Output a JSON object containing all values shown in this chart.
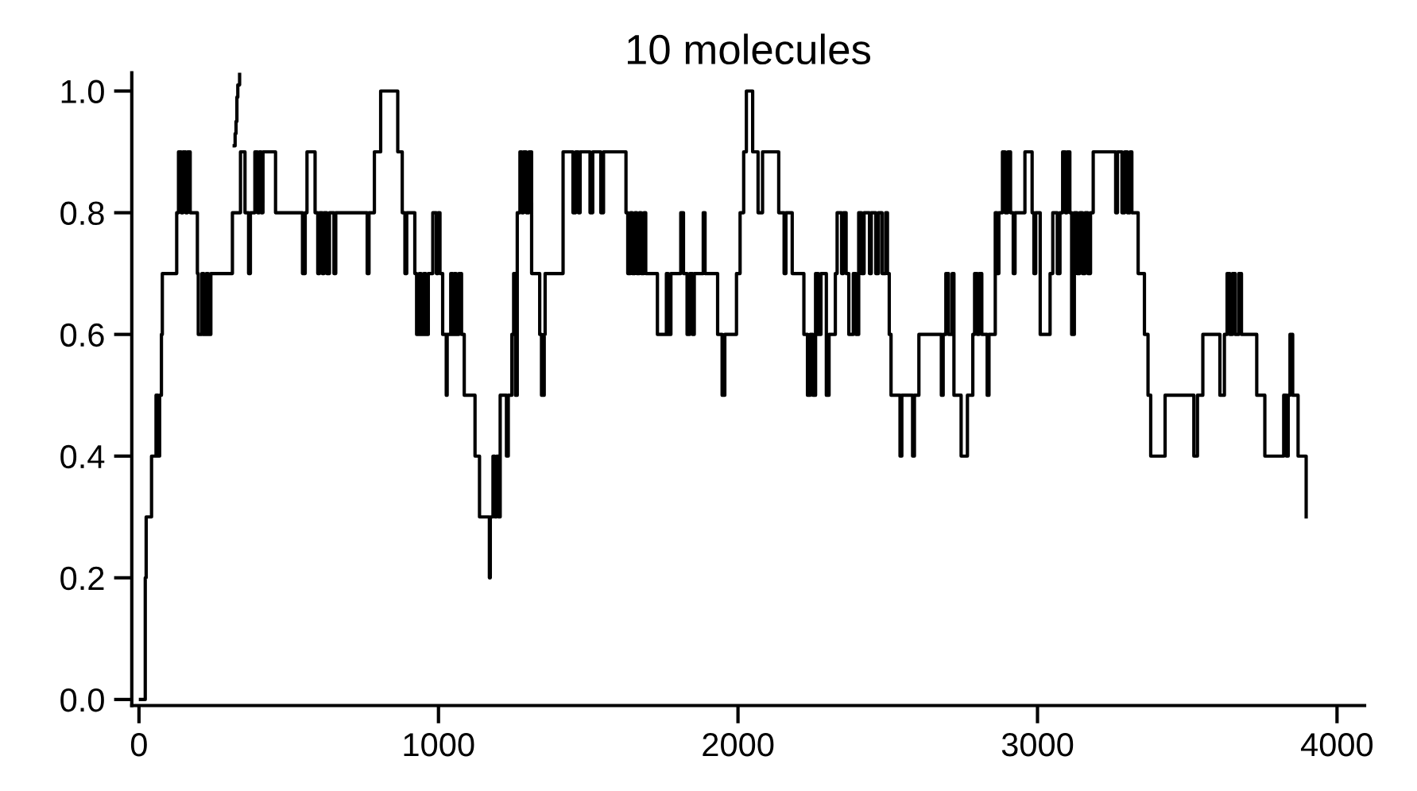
{
  "chart_data": {
    "type": "step",
    "title": "10 molecules",
    "series": [
      {
        "color": "#000000",
        "x": [
          5,
          15,
          21,
          24,
          42,
          57,
          63,
          69,
          75,
          78,
          126,
          132,
          141,
          147,
          156,
          162,
          171,
          195,
          198,
          210,
          216,
          225,
          231,
          240,
          312,
          339,
          354,
          366,
          372,
          387,
          396,
          402,
          408,
          414,
          456,
          546,
          555,
          561,
          588,
          597,
          603,
          612,
          618,
          627,
          636,
          651,
          657,
          762,
          768,
          786,
          807,
          864,
          879,
          888,
          894,
          921,
          927,
          936,
          942,
          951,
          957,
          966,
          981,
          993,
          999,
          1005,
          1014,
          1026,
          1029,
          1041,
          1047,
          1053,
          1059,
          1068,
          1077,
          1086,
          1122,
          1137,
          1170,
          1173,
          1182,
          1188,
          1194,
          1200,
          1206,
          1227,
          1233,
          1245,
          1251,
          1257,
          1263,
          1272,
          1278,
          1284,
          1293,
          1302,
          1311,
          1338,
          1344,
          1353,
          1356,
          1380,
          1416,
          1449,
          1458,
          1467,
          1473,
          1506,
          1515,
          1542,
          1551,
          1626,
          1632,
          1641,
          1647,
          1656,
          1662,
          1671,
          1677,
          1686,
          1692,
          1731,
          1761,
          1767,
          1776,
          1809,
          1818,
          1830,
          1839,
          1848,
          1854,
          1884,
          1890,
          1932,
          1947,
          1956,
          1995,
          2007,
          2019,
          2028,
          2049,
          2067,
          2082,
          2136,
          2154,
          2160,
          2181,
          2220,
          2232,
          2241,
          2250,
          2259,
          2268,
          2277,
          2295,
          2304,
          2325,
          2331,
          2346,
          2352,
          2361,
          2370,
          2385,
          2394,
          2403,
          2412,
          2421,
          2439,
          2445,
          2460,
          2469,
          2481,
          2493,
          2499,
          2505,
          2511,
          2541,
          2547,
          2583,
          2589,
          2604,
          2679,
          2685,
          2694,
          2703,
          2715,
          2721,
          2745,
          2766,
          2784,
          2790,
          2799,
          2805,
          2814,
          2832,
          2838,
          2859,
          2865,
          2871,
          2883,
          2892,
          2901,
          2910,
          2919,
          2925,
          2958,
          2982,
          2988,
          2994,
          3009,
          3042,
          3051,
          3066,
          3075,
          3084,
          3093,
          3099,
          3108,
          3114,
          3123,
          3132,
          3141,
          3150,
          3159,
          3168,
          3177,
          3186,
          3261,
          3267,
          3282,
          3291,
          3300,
          3309,
          3315,
          3336,
          3357,
          3369,
          3378,
          3426,
          3522,
          3534,
          3552,
          3609,
          3624,
          3633,
          3642,
          3651,
          3660,
          3672,
          3681,
          3732,
          3759,
          3822,
          3831,
          3837,
          3843,
          3852,
          3870,
          3897
        ],
        "values": [
          0.0,
          0.0,
          0.2,
          0.3,
          0.4,
          0.5,
          0.4,
          0.5,
          0.6,
          0.7,
          0.8,
          0.9,
          0.8,
          0.9,
          0.8,
          0.9,
          0.8,
          0.7,
          0.6,
          0.7,
          0.6,
          0.7,
          0.6,
          0.7,
          0.8,
          0.9,
          0.8,
          0.7,
          0.8,
          0.9,
          0.8,
          0.9,
          0.8,
          0.9,
          0.8,
          0.7,
          0.8,
          0.9,
          0.8,
          0.7,
          0.8,
          0.7,
          0.8,
          0.7,
          0.8,
          0.7,
          0.8,
          0.7,
          0.8,
          0.9,
          1.0,
          0.9,
          0.8,
          0.7,
          0.8,
          0.7,
          0.6,
          0.7,
          0.6,
          0.7,
          0.6,
          0.7,
          0.8,
          0.7,
          0.8,
          0.7,
          0.6,
          0.5,
          0.6,
          0.7,
          0.6,
          0.7,
          0.6,
          0.7,
          0.6,
          0.5,
          0.4,
          0.3,
          0.2,
          0.3,
          0.4,
          0.3,
          0.4,
          0.3,
          0.5,
          0.4,
          0.5,
          0.6,
          0.7,
          0.5,
          0.8,
          0.9,
          0.8,
          0.9,
          0.8,
          0.9,
          0.7,
          0.6,
          0.5,
          0.6,
          0.7,
          0.7,
          0.9,
          0.8,
          0.9,
          0.8,
          0.9,
          0.8,
          0.9,
          0.8,
          0.9,
          0.8,
          0.7,
          0.8,
          0.7,
          0.8,
          0.7,
          0.8,
          0.7,
          0.8,
          0.7,
          0.6,
          0.7,
          0.6,
          0.7,
          0.8,
          0.7,
          0.6,
          0.7,
          0.6,
          0.7,
          0.8,
          0.7,
          0.6,
          0.5,
          0.6,
          0.7,
          0.8,
          0.9,
          1.0,
          0.9,
          0.8,
          0.9,
          0.8,
          0.7,
          0.8,
          0.7,
          0.6,
          0.5,
          0.6,
          0.5,
          0.7,
          0.6,
          0.7,
          0.5,
          0.6,
          0.7,
          0.8,
          0.7,
          0.8,
          0.7,
          0.6,
          0.7,
          0.6,
          0.8,
          0.7,
          0.8,
          0.7,
          0.8,
          0.7,
          0.8,
          0.7,
          0.8,
          0.7,
          0.6,
          0.5,
          0.4,
          0.5,
          0.4,
          0.5,
          0.6,
          0.5,
          0.6,
          0.7,
          0.6,
          0.7,
          0.5,
          0.4,
          0.5,
          0.6,
          0.7,
          0.6,
          0.7,
          0.6,
          0.5,
          0.6,
          0.8,
          0.7,
          0.8,
          0.9,
          0.8,
          0.9,
          0.8,
          0.7,
          0.8,
          0.9,
          0.8,
          0.7,
          0.8,
          0.6,
          0.7,
          0.8,
          0.7,
          0.8,
          0.9,
          0.8,
          0.9,
          0.8,
          0.6,
          0.8,
          0.7,
          0.8,
          0.7,
          0.8,
          0.7,
          0.8,
          0.9,
          0.8,
          0.9,
          0.8,
          0.9,
          0.8,
          0.9,
          0.8,
          0.7,
          0.6,
          0.5,
          0.4,
          0.5,
          0.4,
          0.5,
          0.6,
          0.5,
          0.6,
          0.7,
          0.6,
          0.7,
          0.6,
          0.7,
          0.6,
          0.5,
          0.4,
          0.5,
          0.4,
          0.5,
          0.6,
          0.5,
          0.4,
          0.3
        ]
      },
      {
        "color": "#000000",
        "x": [
          318,
          321,
          324,
          327,
          330,
          336
        ],
        "values": [
          0.91,
          0.93,
          0.95,
          0.99,
          1.01,
          1.03
        ]
      }
    ],
    "xlim": [
      -24,
      4092
    ],
    "ylim": [
      -0.01,
      1.03
    ],
    "xticks": [
      0,
      1000,
      2000,
      3000,
      4000
    ],
    "yticks": [
      {
        "value": 0,
        "label": "0.0"
      },
      0.2,
      0.4,
      0.6,
      0.8,
      {
        "value": 1,
        "label": "1.0"
      }
    ],
    "grid": false,
    "marker": "none",
    "line_style": "solid"
  }
}
